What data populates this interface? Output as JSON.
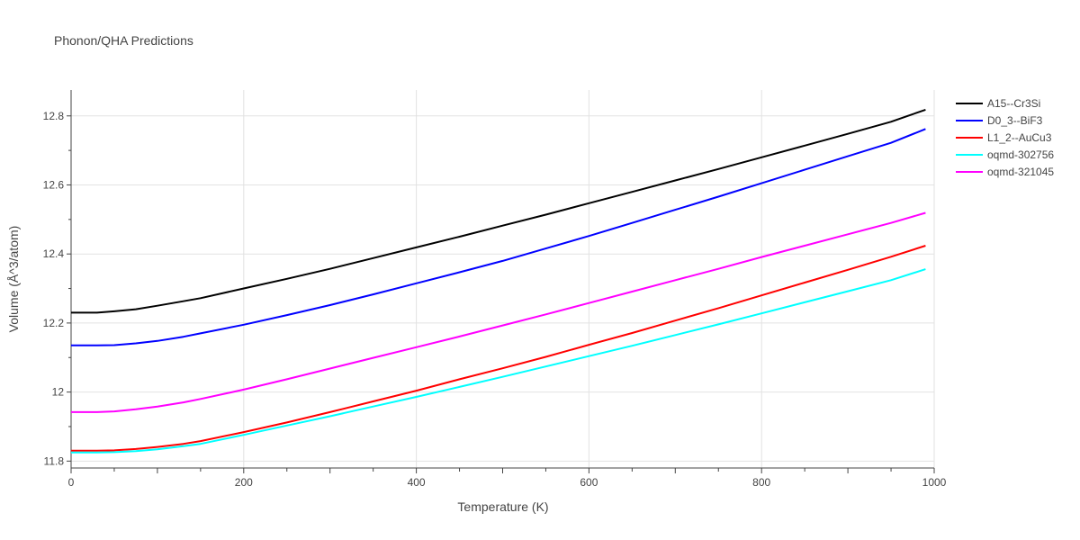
{
  "chart_data": {
    "type": "line",
    "title": "Phonon/QHA Predictions",
    "xlabel": "Temperature (K)",
    "ylabel": "Volume (Å^3/atom)",
    "xlim": [
      0,
      1000
    ],
    "ylim": [
      11.78,
      12.875
    ],
    "xticks": [
      0,
      200,
      400,
      600,
      800,
      1000
    ],
    "xtick_labels": [
      "0",
      "200",
      "400",
      "600",
      "800",
      "1000"
    ],
    "yticks": [
      11.8,
      12,
      12.2,
      12.4,
      12.6,
      12.8
    ],
    "ytick_labels": [
      "11.8",
      "12",
      "12.2",
      "12.4",
      "12.6",
      "12.8"
    ],
    "grid": true,
    "legend_position": "top-right",
    "x": [
      0,
      30,
      50,
      75,
      100,
      130,
      150,
      200,
      250,
      300,
      350,
      400,
      450,
      500,
      550,
      600,
      650,
      700,
      750,
      800,
      850,
      900,
      950,
      990
    ],
    "series": [
      {
        "name": "A15--Cr3Si",
        "color": "#000000",
        "values": [
          12.23,
          12.23,
          12.234,
          12.24,
          12.25,
          12.263,
          12.272,
          12.3,
          12.328,
          12.357,
          12.388,
          12.419,
          12.45,
          12.482,
          12.514,
          12.547,
          12.58,
          12.613,
          12.646,
          12.68,
          12.714,
          12.748,
          12.783,
          12.818
        ]
      },
      {
        "name": "D0_3--BiF3",
        "color": "#0000ff",
        "values": [
          12.135,
          12.135,
          12.136,
          12.141,
          12.148,
          12.16,
          12.17,
          12.195,
          12.223,
          12.252,
          12.283,
          12.315,
          12.347,
          12.38,
          12.416,
          12.452,
          12.49,
          12.528,
          12.566,
          12.605,
          12.644,
          12.683,
          12.722,
          12.762
        ]
      },
      {
        "name": "L1_2--AuCu3",
        "color": "#ff0000",
        "values": [
          11.83,
          11.83,
          11.831,
          11.835,
          11.841,
          11.85,
          11.858,
          11.884,
          11.912,
          11.942,
          11.973,
          12.004,
          12.037,
          12.069,
          12.102,
          12.137,
          12.171,
          12.207,
          12.243,
          12.28,
          12.317,
          12.354,
          12.392,
          12.424
        ]
      },
      {
        "name": "oqmd-302756",
        "color": "#00ffff",
        "values": [
          11.825,
          11.825,
          11.826,
          11.829,
          11.834,
          11.843,
          11.85,
          11.876,
          11.903,
          11.93,
          11.958,
          11.986,
          12.015,
          12.044,
          12.074,
          12.104,
          12.134,
          12.165,
          12.196,
          12.228,
          12.26,
          12.292,
          12.324,
          12.356
        ]
      },
      {
        "name": "oqmd-321045",
        "color": "#ff00ff",
        "values": [
          11.942,
          11.942,
          11.944,
          11.95,
          11.958,
          11.97,
          11.98,
          12.007,
          12.037,
          12.068,
          12.099,
          12.13,
          12.161,
          12.193,
          12.225,
          12.258,
          12.291,
          12.324,
          12.357,
          12.391,
          12.424,
          12.457,
          12.49,
          12.519
        ]
      }
    ]
  }
}
